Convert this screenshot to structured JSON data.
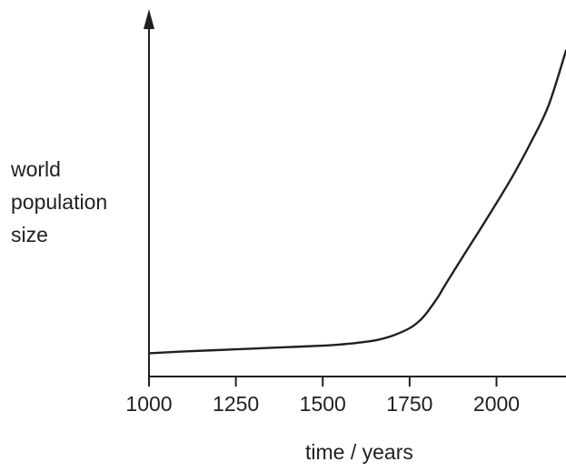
{
  "chart_data": {
    "type": "line",
    "title": "",
    "xlabel": "time / years",
    "ylabel_lines": [
      "world",
      "population",
      "size"
    ],
    "x_ticks": [
      1000,
      1250,
      1500,
      1750,
      2000
    ],
    "x_tick_labels": [
      "1000",
      "1250",
      "1500",
      "1750",
      "2000"
    ],
    "xlim": [
      1000,
      2200
    ],
    "ylim": [
      0,
      100
    ],
    "y_ticks": [],
    "grid": false,
    "legend": "none",
    "colors": {
      "line": "#231f20",
      "axis": "#231f20"
    },
    "series": [
      {
        "x": [
          1000,
          1100,
          1200,
          1300,
          1400,
          1500,
          1550,
          1600,
          1650,
          1700,
          1750,
          1780,
          1800,
          1830,
          1850,
          1900,
          1950,
          2000,
          2050,
          2100,
          2150,
          2200
        ],
        "y": [
          8,
          8.6,
          9.1,
          9.6,
          10.1,
          10.6,
          11.0,
          11.6,
          12.4,
          14.0,
          16.6,
          19.3,
          22.0,
          27.0,
          31.0,
          40.6,
          50.0,
          59.6,
          69.6,
          80.7,
          93.2,
          112
        ]
      }
    ]
  }
}
